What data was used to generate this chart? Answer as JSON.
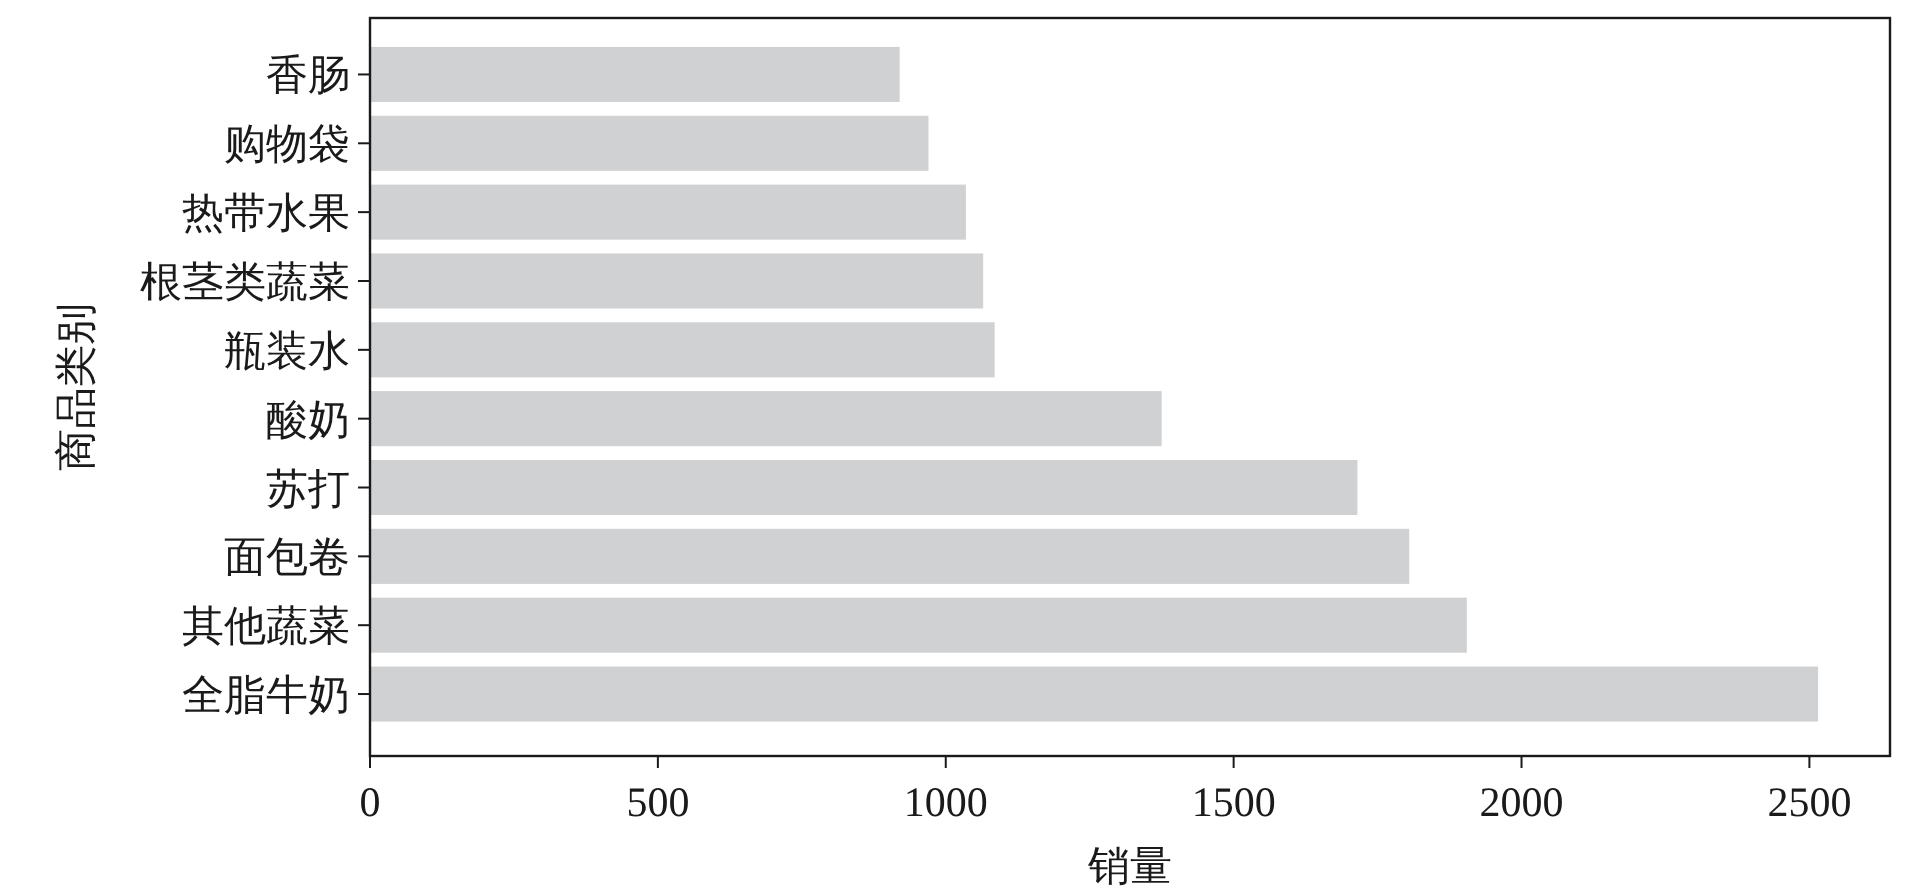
{
  "chart_data": {
    "type": "bar",
    "orientation": "horizontal",
    "xlabel": "销量",
    "ylabel": "商品类别",
    "categories": [
      "香肠",
      "购物袋",
      "热带水果",
      "根茎类蔬菜",
      "瓶装水",
      "酸奶",
      "苏打",
      "面包卷",
      "其他蔬菜",
      "全脂牛奶"
    ],
    "values": [
      920,
      970,
      1035,
      1065,
      1085,
      1375,
      1715,
      1805,
      1905,
      2515
    ],
    "color": "#d0d1d3",
    "xlim": [
      0,
      2640
    ],
    "xticks": [
      0,
      500,
      1000,
      1500,
      2000,
      2500
    ]
  }
}
